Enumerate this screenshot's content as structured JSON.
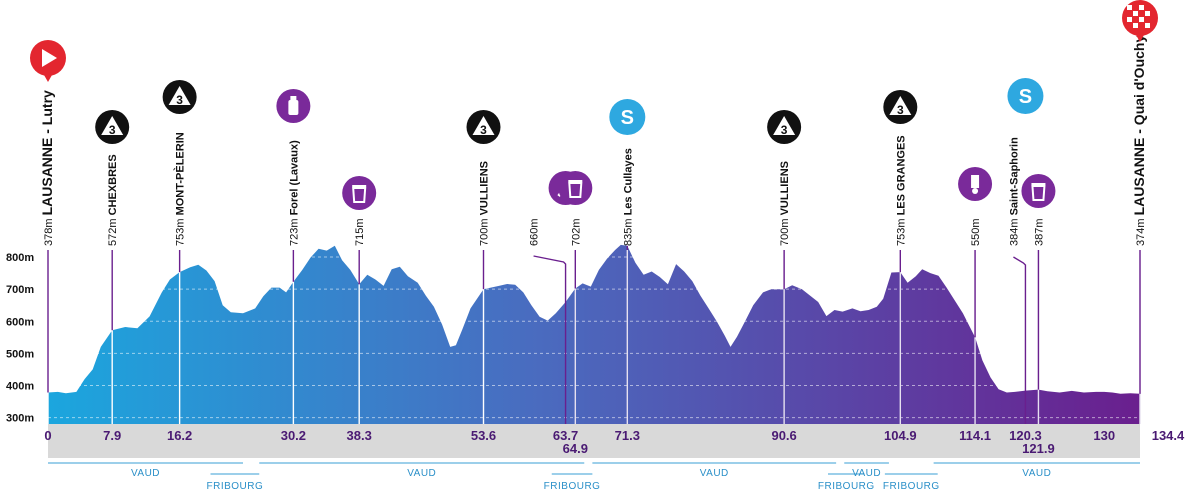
{
  "colors": {
    "start": "#1ba6de",
    "end": "#6a1f8e",
    "climb_icon": "#111111",
    "feed_icon": "#7a2a9a",
    "sprint_icon": "#2ea8e0",
    "start_icon": "#e3262f",
    "region_line": "#3a9fd6",
    "axis_band": "#d9d9d9",
    "km_text": "#4a1a73"
  },
  "chart_data": {
    "type": "area",
    "xlim": [
      0,
      134.4
    ],
    "ylim": [
      280,
      850
    ],
    "grid": true,
    "y_ticks": [
      {
        "value": 300,
        "label": "300m"
      },
      {
        "value": 400,
        "label": "400m"
      },
      {
        "value": 500,
        "label": "500m"
      },
      {
        "value": 600,
        "label": "600m"
      },
      {
        "value": 700,
        "label": "700m"
      },
      {
        "value": 800,
        "label": "800m"
      }
    ],
    "profile": [
      [
        0,
        378
      ],
      [
        1.2,
        380
      ],
      [
        2.2,
        376
      ],
      [
        3.5,
        380
      ],
      [
        4.5,
        420
      ],
      [
        5.5,
        450
      ],
      [
        6.5,
        520
      ],
      [
        7.9,
        572
      ],
      [
        9.5,
        582
      ],
      [
        11,
        578
      ],
      [
        12.5,
        615
      ],
      [
        14,
        690
      ],
      [
        15,
        730
      ],
      [
        16.2,
        753
      ],
      [
        17.5,
        768
      ],
      [
        18.5,
        776
      ],
      [
        19.5,
        758
      ],
      [
        20.5,
        725
      ],
      [
        21.5,
        650
      ],
      [
        22.5,
        628
      ],
      [
        24,
        625
      ],
      [
        25.5,
        640
      ],
      [
        26.5,
        678
      ],
      [
        27.5,
        705
      ],
      [
        28.5,
        705
      ],
      [
        29.3,
        690
      ],
      [
        30.2,
        723
      ],
      [
        31.3,
        760
      ],
      [
        32.3,
        798
      ],
      [
        33.3,
        826
      ],
      [
        34.3,
        820
      ],
      [
        35.3,
        835
      ],
      [
        36.2,
        790
      ],
      [
        37.2,
        760
      ],
      [
        38.3,
        715
      ],
      [
        39.3,
        745
      ],
      [
        40.3,
        730
      ],
      [
        41.3,
        710
      ],
      [
        42.3,
        762
      ],
      [
        43.3,
        770
      ],
      [
        44.3,
        740
      ],
      [
        45.5,
        720
      ],
      [
        46.5,
        680
      ],
      [
        47.5,
        645
      ],
      [
        48.5,
        590
      ],
      [
        49.5,
        520
      ],
      [
        50.2,
        525
      ],
      [
        51,
        575
      ],
      [
        52,
        640
      ],
      [
        53.6,
        700
      ],
      [
        54.5,
        705
      ],
      [
        55.5,
        710
      ],
      [
        56.5,
        716
      ],
      [
        57.5,
        714
      ],
      [
        58.5,
        690
      ],
      [
        59.5,
        650
      ],
      [
        60.5,
        614
      ],
      [
        61.5,
        602
      ],
      [
        62.5,
        625
      ],
      [
        63.7,
        660
      ],
      [
        64.9,
        702
      ],
      [
        65.8,
        718
      ],
      [
        66.8,
        708
      ],
      [
        67.8,
        760
      ],
      [
        68.8,
        795
      ],
      [
        69.8,
        822
      ],
      [
        70.5,
        838
      ],
      [
        71.3,
        835
      ],
      [
        72.3,
        782
      ],
      [
        73.3,
        745
      ],
      [
        74.3,
        755
      ],
      [
        75.3,
        738
      ],
      [
        76.3,
        715
      ],
      [
        77.3,
        778
      ],
      [
        78.3,
        755
      ],
      [
        79.3,
        725
      ],
      [
        80.3,
        680
      ],
      [
        81.3,
        640
      ],
      [
        82.3,
        600
      ],
      [
        83.3,
        555
      ],
      [
        84,
        520
      ],
      [
        84.8,
        552
      ],
      [
        85.8,
        600
      ],
      [
        86.8,
        650
      ],
      [
        88,
        690
      ],
      [
        89,
        700
      ],
      [
        90.6,
        700
      ],
      [
        91.6,
        712
      ],
      [
        92.8,
        700
      ],
      [
        93.8,
        680
      ],
      [
        94.8,
        660
      ],
      [
        95.8,
        616
      ],
      [
        96.8,
        635
      ],
      [
        97.8,
        630
      ],
      [
        99,
        640
      ],
      [
        100,
        631
      ],
      [
        101,
        635
      ],
      [
        102,
        645
      ],
      [
        102.8,
        670
      ],
      [
        103.8,
        752
      ],
      [
        104.9,
        753
      ],
      [
        105.8,
        720
      ],
      [
        106.8,
        740
      ],
      [
        107.6,
        762
      ],
      [
        108.6,
        750
      ],
      [
        109.6,
        742
      ],
      [
        110.6,
        705
      ],
      [
        111.6,
        665
      ],
      [
        112.6,
        625
      ],
      [
        113.6,
        575
      ],
      [
        114.1,
        550
      ],
      [
        115,
        478
      ],
      [
        116,
        425
      ],
      [
        117,
        388
      ],
      [
        118,
        378
      ],
      [
        119,
        380
      ],
      [
        120.3,
        384
      ],
      [
        121.9,
        387
      ],
      [
        123,
        382
      ],
      [
        124.5,
        378
      ],
      [
        126,
        383
      ],
      [
        127.5,
        378
      ],
      [
        129,
        380
      ],
      [
        130,
        380
      ],
      [
        131,
        378
      ],
      [
        132,
        374
      ],
      [
        133.2,
        376
      ],
      [
        134.4,
        374
      ]
    ],
    "waypoints": [
      {
        "km": 0,
        "elev_label": "378m",
        "name": "LAUSANNE - Lutry",
        "icon": "start-flag",
        "elev": 378
      },
      {
        "km": 7.9,
        "elev_label": "572m",
        "name": "CHEXBRES",
        "icon": "climb-cat-3",
        "icon_label": "3",
        "elev": 572
      },
      {
        "km": 16.2,
        "elev_label": "753m",
        "name": "MONT-PÈLERIN",
        "icon": "climb-cat-3",
        "icon_label": "3",
        "elev": 753
      },
      {
        "km": 30.2,
        "elev_label": "723m",
        "name": "Forel (Lavaux)",
        "icon": "water-bottle",
        "elev": 723
      },
      {
        "km": 38.3,
        "elev_label": "715m",
        "name": "",
        "icon": "waste-zone",
        "elev": 715
      },
      {
        "km": 53.6,
        "elev_label": "700m",
        "name": "VULLIENS",
        "icon": "climb-cat-3",
        "icon_label": "3",
        "elev": 700
      },
      {
        "km": 63.7,
        "elev_label": "660m",
        "name": "",
        "icon": "feed-zone",
        "elev": 660
      },
      {
        "km": 64.9,
        "elev_label": "702m",
        "name": "",
        "icon": "waste-zone-end",
        "elev": 702
      },
      {
        "km": 71.3,
        "elev_label": "835m",
        "name": "Les Cullayes",
        "icon": "sprint",
        "icon_label": "S",
        "elev": 835
      },
      {
        "km": 90.6,
        "elev_label": "700m",
        "name": "VULLIENS",
        "icon": "climb-cat-3",
        "icon_label": "3",
        "elev": 700
      },
      {
        "km": 104.9,
        "elev_label": "753m",
        "name": "LES GRANGES",
        "icon": "climb-cat-3",
        "icon_label": "3",
        "elev": 753
      },
      {
        "km": 114.1,
        "elev_label": "550m",
        "name": "",
        "icon": "last-km-marker",
        "elev": 550
      },
      {
        "km": 120.3,
        "elev_label": "384m",
        "name": "Saint-Saphorin",
        "icon": "sprint",
        "icon_label": "S",
        "elev": 384
      },
      {
        "km": 121.9,
        "elev_label": "387m",
        "name": "",
        "icon": "waste-zone",
        "elev": 387
      },
      {
        "km": 134.4,
        "elev_label": "374m",
        "name": "LAUSANNE - Quai d'Ouchy",
        "icon": "finish-flag",
        "elev": 374
      }
    ],
    "km_labels": [
      {
        "km": 0,
        "label": "0",
        "row": 0
      },
      {
        "km": 7.9,
        "label": "7.9",
        "row": 0
      },
      {
        "km": 16.2,
        "label": "16.2",
        "row": 0
      },
      {
        "km": 30.2,
        "label": "30.2",
        "row": 0
      },
      {
        "km": 38.3,
        "label": "38.3",
        "row": 0
      },
      {
        "km": 53.6,
        "label": "53.6",
        "row": 0
      },
      {
        "km": 63.7,
        "label": "63.7",
        "row": 0
      },
      {
        "km": 64.9,
        "label": "64.9",
        "row": 1
      },
      {
        "km": 71.3,
        "label": "71.3",
        "row": 0
      },
      {
        "km": 90.6,
        "label": "90.6",
        "row": 0
      },
      {
        "km": 104.9,
        "label": "104.9",
        "row": 0
      },
      {
        "km": 114.1,
        "label": "114.1",
        "row": 0
      },
      {
        "km": 120.3,
        "label": "120.3",
        "row": 0
      },
      {
        "km": 121.9,
        "label": "121.9",
        "row": 1
      },
      {
        "km": 130,
        "label": "130",
        "row": 0
      },
      {
        "km": 134.4,
        "label": "134.4",
        "row": 0
      }
    ],
    "regions": [
      {
        "name": "VAUD",
        "from": 0,
        "to": 24,
        "side": "top"
      },
      {
        "name": "FRIBOURG",
        "from": 20,
        "to": 26,
        "side": "bottom"
      },
      {
        "name": "VAUD",
        "from": 26,
        "to": 66,
        "side": "top"
      },
      {
        "name": "FRIBOURG",
        "from": 62,
        "to": 67,
        "side": "bottom"
      },
      {
        "name": "VAUD",
        "from": 67,
        "to": 97,
        "side": "top"
      },
      {
        "name": "FRIBOURG",
        "from": 96,
        "to": 100.5,
        "side": "bottom"
      },
      {
        "name": "VAUD",
        "from": 98,
        "to": 103.5,
        "side": "top"
      },
      {
        "name": "FRIBOURG",
        "from": 103,
        "to": 109.5,
        "side": "bottom"
      },
      {
        "name": "VAUD",
        "from": 109,
        "to": 134.4,
        "side": "top"
      }
    ]
  }
}
